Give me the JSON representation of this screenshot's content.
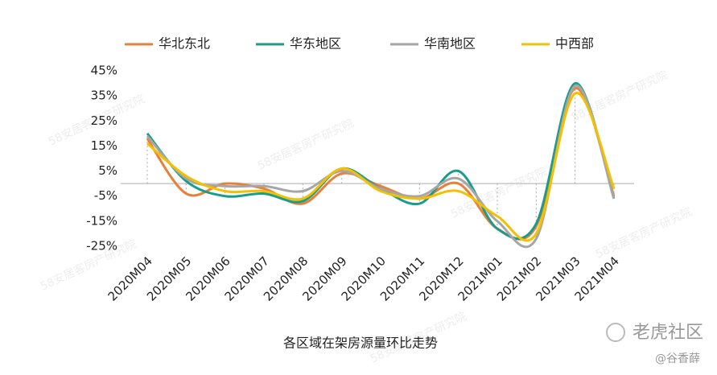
{
  "chart_data": {
    "type": "line",
    "title": "各区域在架房源量环比走势",
    "categories": [
      "2020M04",
      "2020M05",
      "2020M06",
      "2020M07",
      "2020M08",
      "2020M09",
      "2020M10",
      "2020M11",
      "2020M12",
      "2021M01",
      "2021M02",
      "2021M03",
      "2021M04"
    ],
    "series": [
      {
        "name": "华北东北",
        "color": "#e8803a",
        "values": [
          18,
          -4,
          0,
          -2,
          -8,
          4,
          -1,
          -6,
          0,
          -18,
          -17,
          38,
          -5
        ]
      },
      {
        "name": "华东地区",
        "color": "#1a9c8a",
        "values": [
          20,
          1,
          -5,
          -4,
          -7,
          6,
          -2,
          -8,
          5,
          -18,
          -16,
          40,
          -6
        ]
      },
      {
        "name": "华南地区",
        "color": "#a6a6a6",
        "values": [
          19,
          2,
          -1,
          -1,
          -3,
          5,
          -2,
          -5,
          2,
          -15,
          -22,
          39,
          -6
        ]
      },
      {
        "name": "中西部",
        "color": "#f5c000",
        "values": [
          16,
          3,
          -3,
          -3,
          -6,
          6,
          -3,
          -6,
          -3,
          -13,
          -20,
          36,
          -2
        ]
      }
    ],
    "ylim": [
      -25,
      45
    ],
    "yticks": [
      {
        "value": 45,
        "label": "45%"
      },
      {
        "value": 35,
        "label": "35%"
      },
      {
        "value": 25,
        "label": "25%"
      },
      {
        "value": 15,
        "label": "15%"
      },
      {
        "value": 5,
        "label": "5%"
      },
      {
        "value": -5,
        "label": "-5%"
      },
      {
        "value": -15,
        "label": "-15%"
      },
      {
        "value": -25,
        "label": "-25%"
      }
    ],
    "legend": "top",
    "grid": false
  },
  "watermark_text": "58安居客房产研究院",
  "footer": {
    "site": "老虎社区",
    "author": "@谷香薛"
  }
}
